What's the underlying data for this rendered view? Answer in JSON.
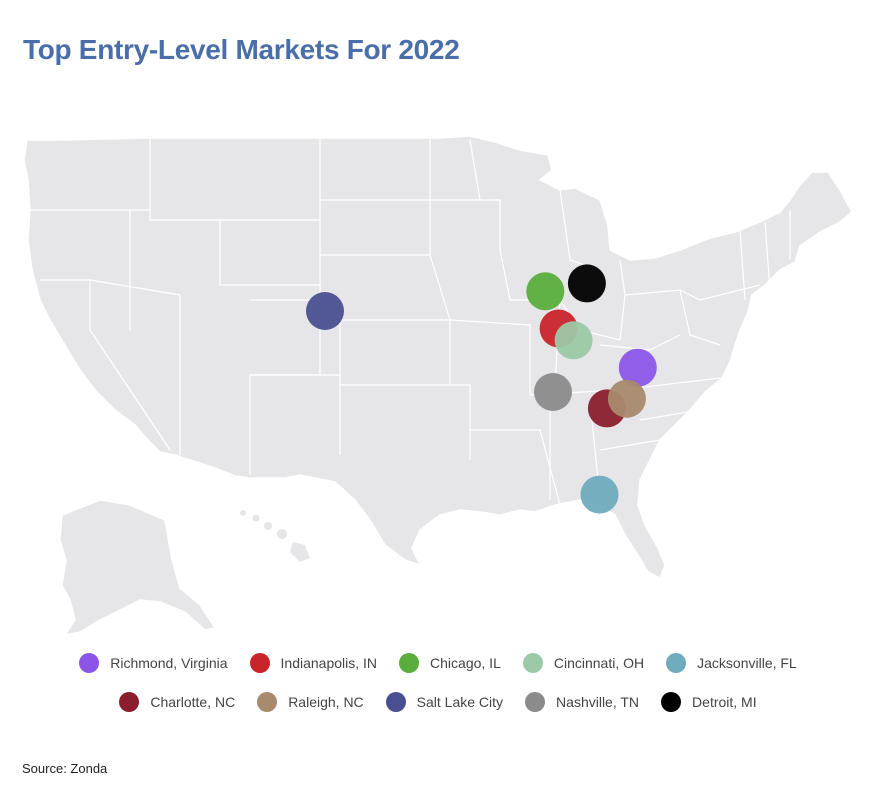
{
  "title": "Top Entry-Level Markets For 2022",
  "source": "Source: Zonda",
  "colors": {
    "land": "#e6e6e8",
    "border": "#ffffff",
    "title": "#4a6ea9"
  },
  "markets": [
    {
      "name": "Richmond, Virginia",
      "color": "#8b56e8",
      "lat": 37.54,
      "lon": -77.44
    },
    {
      "name": "Indianapolis, IN",
      "color": "#c9242a",
      "lat": 39.77,
      "lon": -86.16
    },
    {
      "name": "Chicago, IL",
      "color": "#5aae3e",
      "lat": 41.88,
      "lon": -87.63
    },
    {
      "name": "Cincinnati, OH",
      "color": "#9cc9a8",
      "lat": 39.1,
      "lon": -84.51
    },
    {
      "name": "Jacksonville, FL",
      "color": "#6eabbd",
      "lat": 30.33,
      "lon": -81.66
    },
    {
      "name": "Charlotte, NC",
      "color": "#8a1e2d",
      "lat": 35.23,
      "lon": -80.84
    },
    {
      "name": "Raleigh, NC",
      "color": "#a88a6e",
      "lat": 35.78,
      "lon": -78.64
    },
    {
      "name": "Salt Lake City",
      "color": "#4a4f91",
      "lat": 40.76,
      "lon": -111.89
    },
    {
      "name": "Nashville, TN",
      "color": "#8b8b8b",
      "lat": 36.16,
      "lon": -86.78
    },
    {
      "name": "Detroit, MI",
      "color": "#000000",
      "lat": 42.33,
      "lon": -83.05
    }
  ],
  "legend_rows": [
    [
      "Richmond, Virginia",
      "Indianapolis, IN",
      "Chicago, IL",
      "Cincinnati, OH",
      "Jacksonville, FL"
    ],
    [
      "Charlotte, NC",
      "Raleigh, NC",
      "Salt Lake City",
      "Nashville, TN",
      "Detroit, MI"
    ]
  ]
}
